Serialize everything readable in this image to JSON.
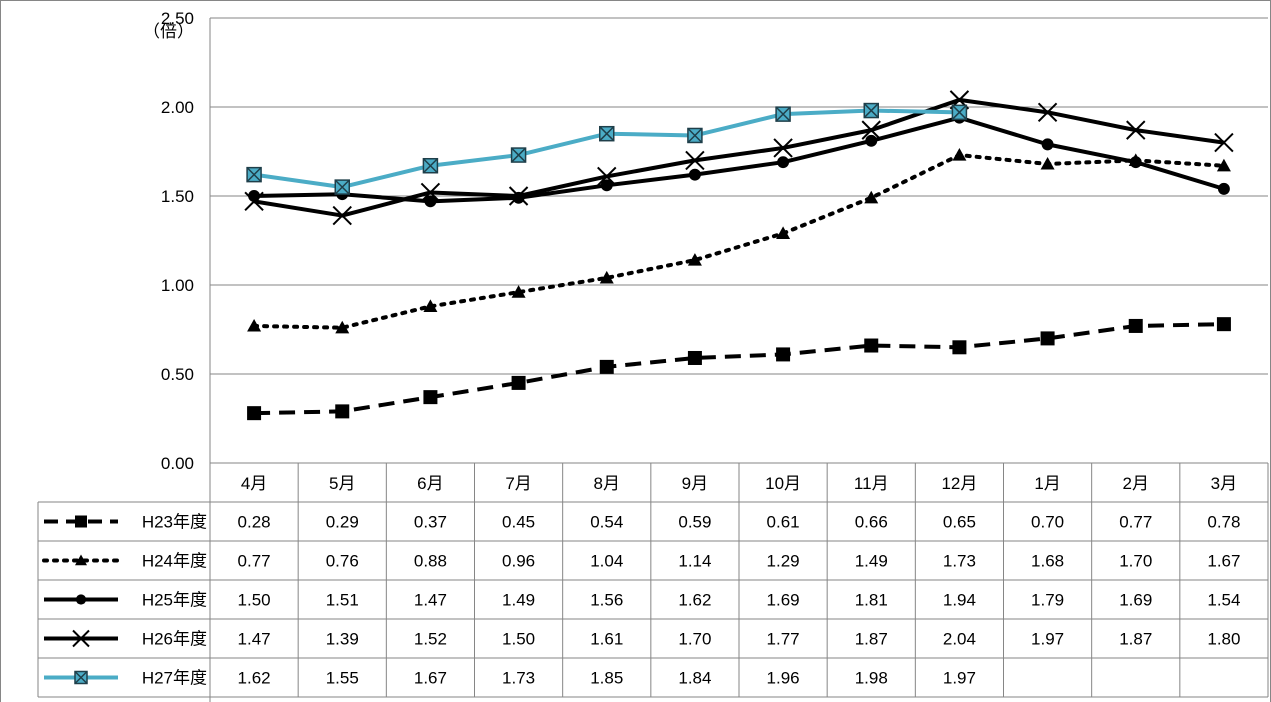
{
  "chart_data": {
    "type": "line",
    "title": "",
    "ylabel": "（倍）",
    "xlabel": "",
    "ylim": [
      0,
      2.5
    ],
    "yticks": [
      "0.00",
      "0.50",
      "1.00",
      "1.50",
      "2.00",
      "2.50"
    ],
    "categories": [
      "4月",
      "5月",
      "6月",
      "7月",
      "8月",
      "9月",
      "10月",
      "11月",
      "12月",
      "1月",
      "2月",
      "3月"
    ],
    "grid": "horizontal",
    "legend": "data-table-bottom",
    "series": [
      {
        "name": "H23年度",
        "color": "#000000",
        "dash": "dashed",
        "marker": "square",
        "values": [
          0.28,
          0.29,
          0.37,
          0.45,
          0.54,
          0.59,
          0.61,
          0.66,
          0.65,
          0.7,
          0.77,
          0.78
        ],
        "labels": [
          "0.28",
          "0.29",
          "0.37",
          "0.45",
          "0.54",
          "0.59",
          "0.61",
          "0.66",
          "0.65",
          "0.70",
          "0.77",
          "0.78"
        ]
      },
      {
        "name": "H24年度",
        "color": "#000000",
        "dash": "dotted",
        "marker": "triangle",
        "values": [
          0.77,
          0.76,
          0.88,
          0.96,
          1.04,
          1.14,
          1.29,
          1.49,
          1.73,
          1.68,
          1.7,
          1.67
        ],
        "labels": [
          "0.77",
          "0.76",
          "0.88",
          "0.96",
          "1.04",
          "1.14",
          "1.29",
          "1.49",
          "1.73",
          "1.68",
          "1.70",
          "1.67"
        ]
      },
      {
        "name": "H25年度",
        "color": "#000000",
        "dash": "solid",
        "marker": "circle",
        "values": [
          1.5,
          1.51,
          1.47,
          1.49,
          1.56,
          1.62,
          1.69,
          1.81,
          1.94,
          1.79,
          1.69,
          1.54
        ],
        "labels": [
          "1.50",
          "1.51",
          "1.47",
          "1.49",
          "1.56",
          "1.62",
          "1.69",
          "1.81",
          "1.94",
          "1.79",
          "1.69",
          "1.54"
        ]
      },
      {
        "name": "H26年度",
        "color": "#000000",
        "dash": "solid",
        "marker": "x",
        "values": [
          1.47,
          1.39,
          1.52,
          1.5,
          1.61,
          1.7,
          1.77,
          1.87,
          2.04,
          1.97,
          1.87,
          1.8
        ],
        "labels": [
          "1.47",
          "1.39",
          "1.52",
          "1.50",
          "1.61",
          "1.70",
          "1.77",
          "1.87",
          "2.04",
          "1.97",
          "1.87",
          "1.80"
        ]
      },
      {
        "name": "H27年度",
        "color": "#4bacc6",
        "dash": "solid",
        "marker": "square-x",
        "values": [
          1.62,
          1.55,
          1.67,
          1.73,
          1.85,
          1.84,
          1.96,
          1.98,
          1.97,
          null,
          null,
          null
        ],
        "labels": [
          "1.62",
          "1.55",
          "1.67",
          "1.73",
          "1.85",
          "1.84",
          "1.96",
          "1.98",
          "1.97",
          "",
          "",
          ""
        ]
      }
    ]
  }
}
